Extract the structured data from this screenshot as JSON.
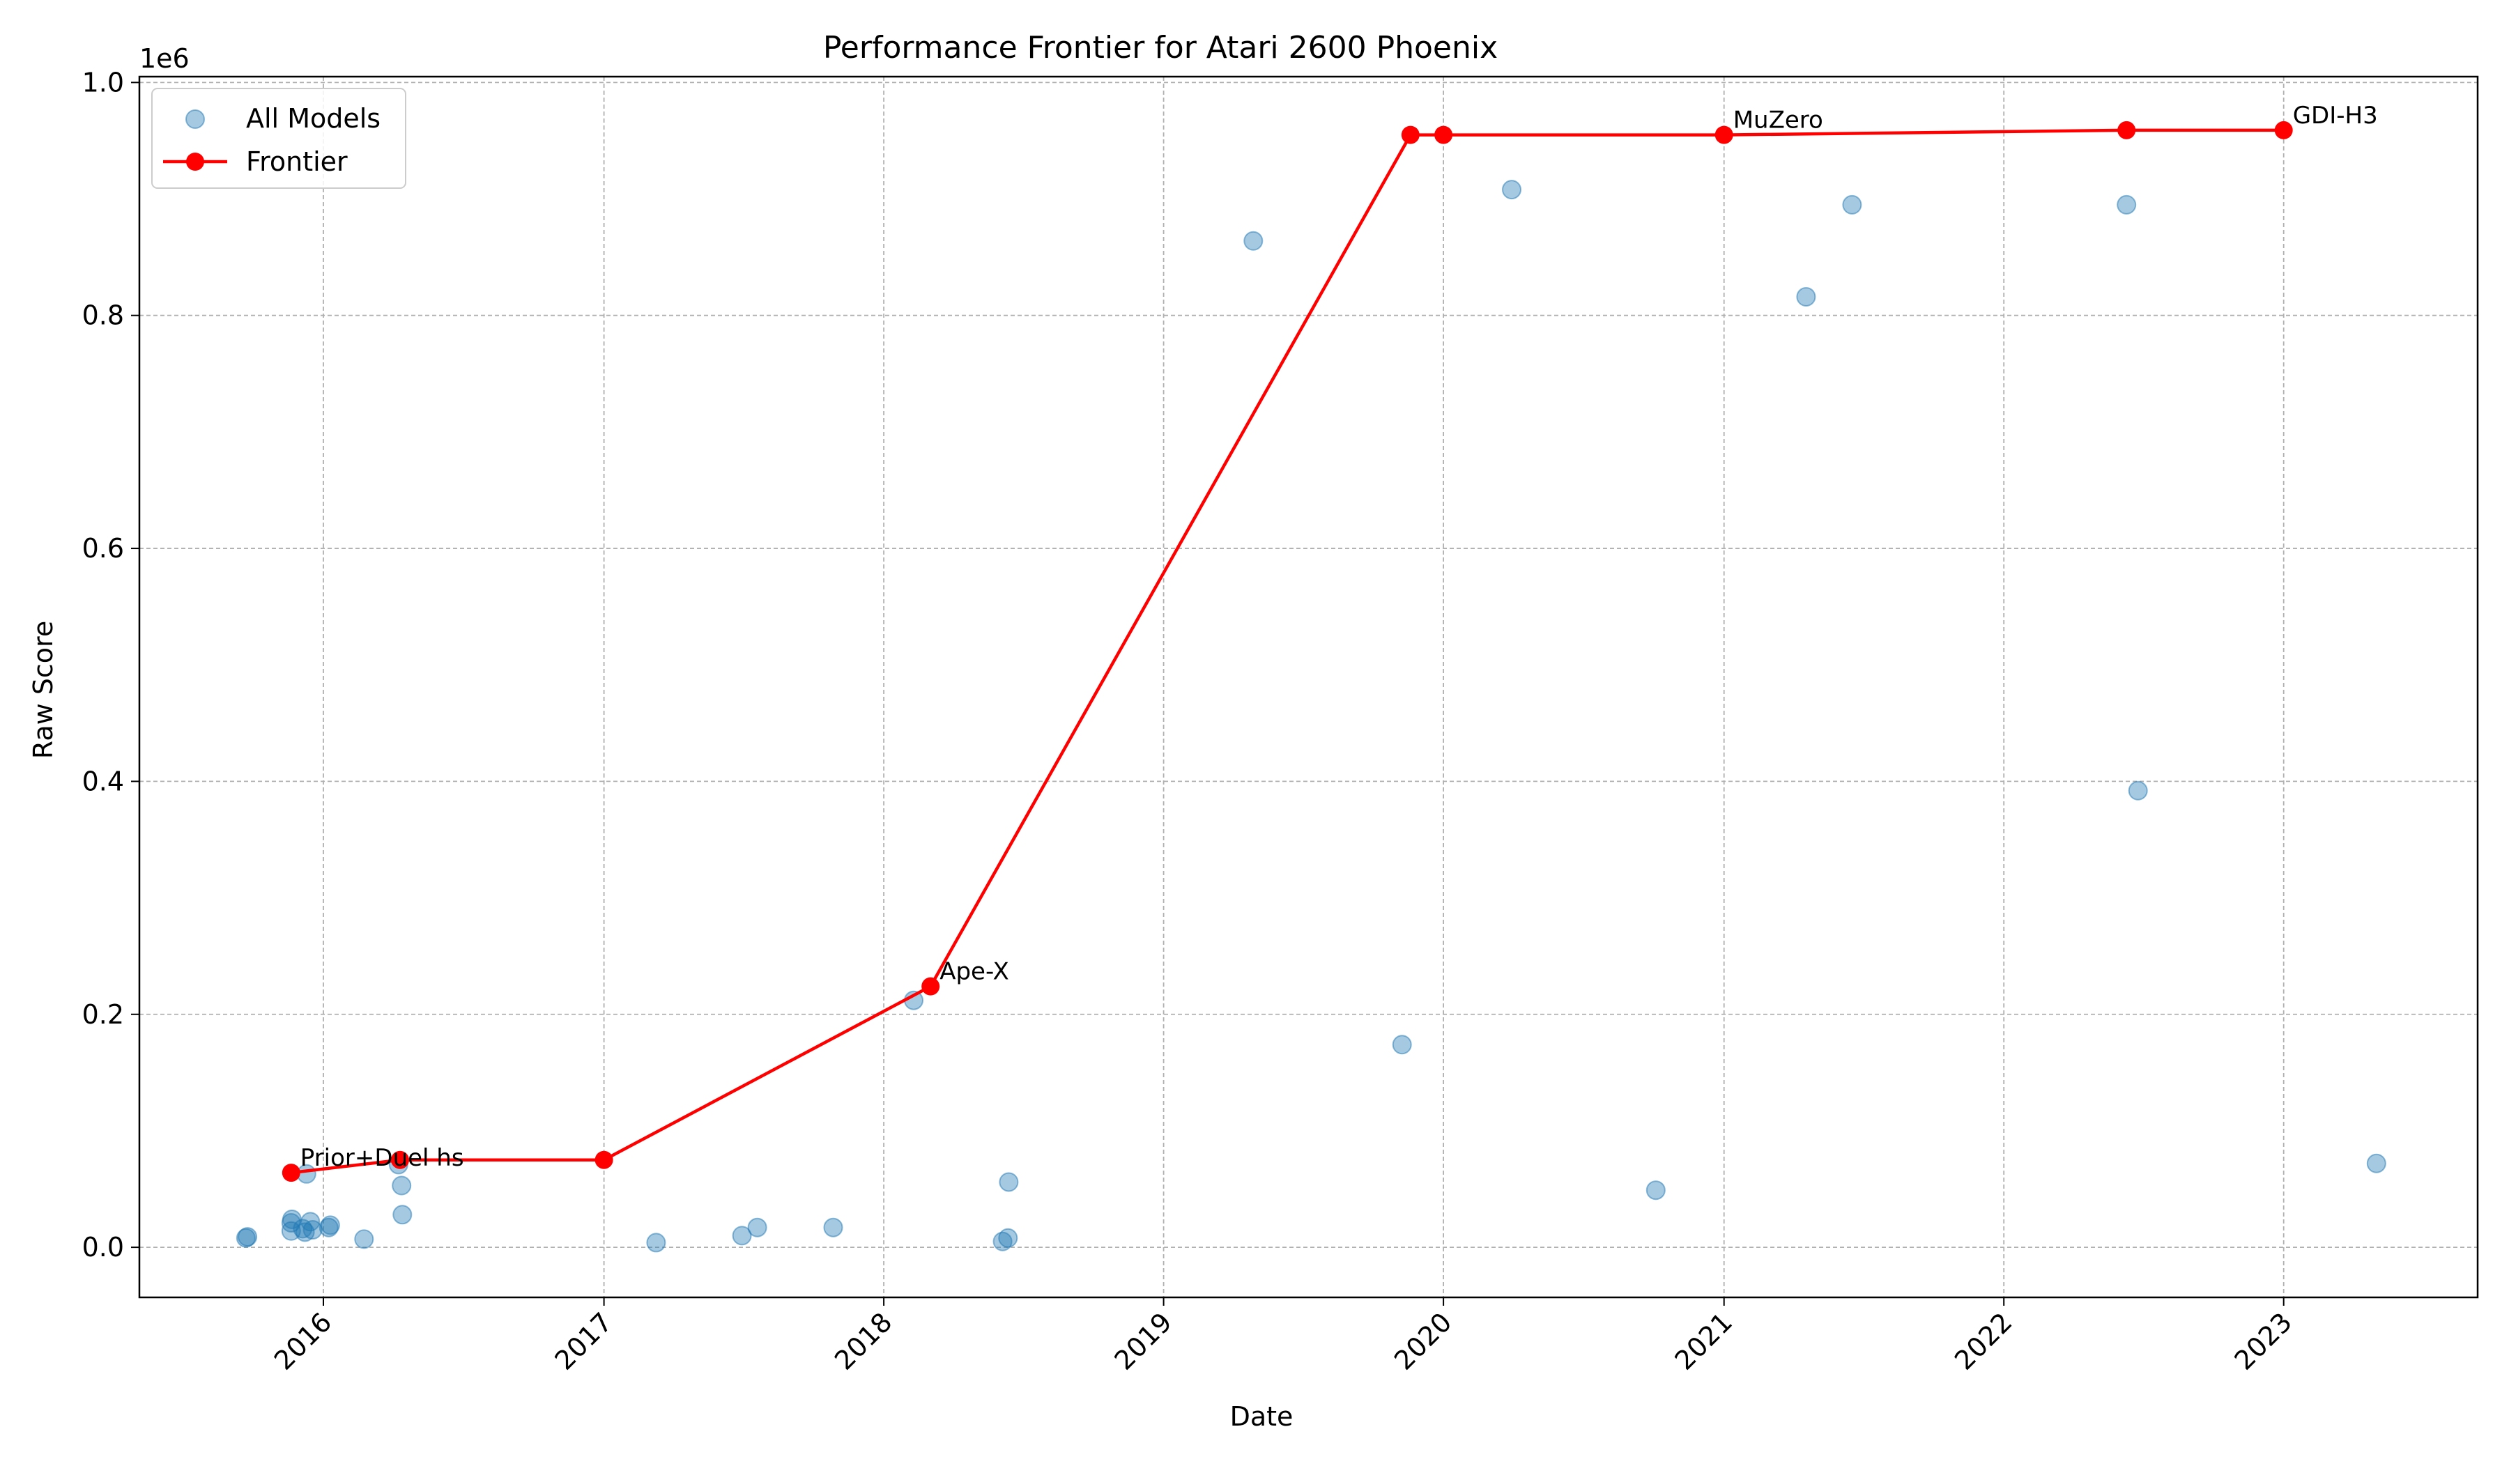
{
  "chart_data": {
    "type": "scatter",
    "title": "Performance Frontier for Atari 2600 Phoenix",
    "xlabel": "Date",
    "ylabel": "Raw Score",
    "y_offset_label": "1e6",
    "x_axis_type": "date",
    "xlim": [
      "2015-05-06",
      "2023-09-11"
    ],
    "ylim": [
      -43000,
      1005000
    ],
    "x_ticks": [
      {
        "label": "2016",
        "value": "2016-01-01"
      },
      {
        "label": "2017",
        "value": "2017-01-01"
      },
      {
        "label": "2018",
        "value": "2018-01-01"
      },
      {
        "label": "2019",
        "value": "2019-01-01"
      },
      {
        "label": "2020",
        "value": "2020-01-01"
      },
      {
        "label": "2021",
        "value": "2021-01-01"
      },
      {
        "label": "2022",
        "value": "2022-01-01"
      },
      {
        "label": "2023",
        "value": "2023-01-01"
      }
    ],
    "y_ticks": [
      {
        "label": "0.0",
        "value": 0
      },
      {
        "label": "0.2",
        "value": 200000
      },
      {
        "label": "0.4",
        "value": 400000
      },
      {
        "label": "0.6",
        "value": 600000
      },
      {
        "label": "0.8",
        "value": 800000
      },
      {
        "label": "1.0",
        "value": 1000000
      }
    ],
    "grid": true,
    "legend_position": "top-left",
    "colors": {
      "all_models": "#1f77b4",
      "frontier": "#ff0000"
    },
    "series": [
      {
        "name": "All Models",
        "kind": "scatter",
        "points": [
          {
            "x": "2015-09-22",
            "y": 8000
          },
          {
            "x": "2015-09-24",
            "y": 9000
          },
          {
            "x": "2015-11-20",
            "y": 14000
          },
          {
            "x": "2015-11-20",
            "y": 21000
          },
          {
            "x": "2015-11-21",
            "y": 24000
          },
          {
            "x": "2015-12-05",
            "y": 16000
          },
          {
            "x": "2015-12-08",
            "y": 13000
          },
          {
            "x": "2015-12-10",
            "y": 63000
          },
          {
            "x": "2015-12-15",
            "y": 22000
          },
          {
            "x": "2015-12-18",
            "y": 15000
          },
          {
            "x": "2016-01-08",
            "y": 17000
          },
          {
            "x": "2016-01-10",
            "y": 19000
          },
          {
            "x": "2016-02-23",
            "y": 7000
          },
          {
            "x": "2016-04-08",
            "y": 71000
          },
          {
            "x": "2016-04-12",
            "y": 53000
          },
          {
            "x": "2016-04-13",
            "y": 28000
          },
          {
            "x": "2017-03-10",
            "y": 4000
          },
          {
            "x": "2017-06-30",
            "y": 10000
          },
          {
            "x": "2017-07-20",
            "y": 17000
          },
          {
            "x": "2017-10-27",
            "y": 17000
          },
          {
            "x": "2018-02-09",
            "y": 212000
          },
          {
            "x": "2018-06-05",
            "y": 5000
          },
          {
            "x": "2018-06-12",
            "y": 8000
          },
          {
            "x": "2018-06-13",
            "y": 56000
          },
          {
            "x": "2019-04-28",
            "y": 864000
          },
          {
            "x": "2019-11-08",
            "y": 174000
          },
          {
            "x": "2020-03-30",
            "y": 908000
          },
          {
            "x": "2020-10-04",
            "y": 49000
          },
          {
            "x": "2021-04-18",
            "y": 816000
          },
          {
            "x": "2021-06-17",
            "y": 895000
          },
          {
            "x": "2022-06-10",
            "y": 895000
          },
          {
            "x": "2022-06-25",
            "y": 392000
          },
          {
            "x": "2023-05-02",
            "y": 72000
          }
        ]
      },
      {
        "name": "Frontier",
        "kind": "line",
        "points": [
          {
            "x": "2015-11-20",
            "y": 64000
          },
          {
            "x": "2016-04-10",
            "y": 75000
          },
          {
            "x": "2017-01-01",
            "y": 75000
          },
          {
            "x": "2018-03-03",
            "y": 224000
          },
          {
            "x": "2019-11-19",
            "y": 955000
          },
          {
            "x": "2020-01-01",
            "y": 955000
          },
          {
            "x": "2021-01-01",
            "y": 955000
          },
          {
            "x": "2022-06-10",
            "y": 959000
          },
          {
            "x": "2023-01-01",
            "y": 959000
          }
        ]
      }
    ],
    "annotations": [
      {
        "text": "Prior+Duel hs",
        "x": "2015-11-20",
        "y": 64000
      },
      {
        "text": "Ape-X",
        "x": "2018-03-03",
        "y": 224000
      },
      {
        "text": "MuZero",
        "x": "2021-01-01",
        "y": 955000
      },
      {
        "text": "GDI-H3",
        "x": "2023-01-01",
        "y": 959000
      }
    ]
  }
}
